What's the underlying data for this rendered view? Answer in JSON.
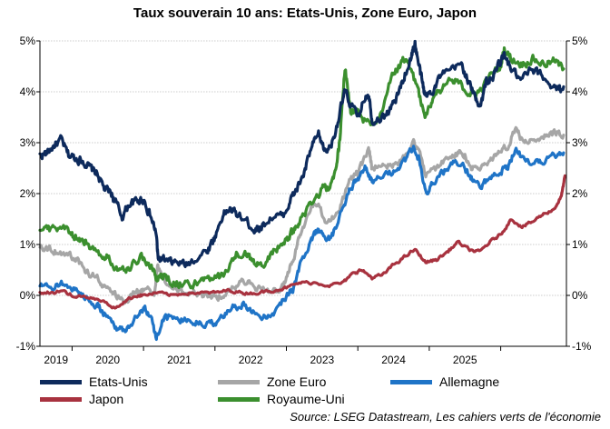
{
  "chart_data": {
    "type": "line",
    "title": "Taux souverain 10 ans: Etats-Unis, Zone Euro, Japon",
    "source": "Source: LSEG Datastream, Les cahiers verts de l'économie",
    "ylim": [
      -1,
      5
    ],
    "y_ticks": [
      -1,
      0,
      1,
      2,
      3,
      4,
      5
    ],
    "y_tick_labels": [
      "-1%",
      "0%",
      "1%",
      "2%",
      "3%",
      "4%",
      "5%"
    ],
    "y_tick_labels_right": [
      "-1%",
      "0%",
      "1%",
      "2%",
      "3%",
      "4%",
      "5%"
    ],
    "xlim": [
      2018.55,
      2025.92
    ],
    "x_ticks": [
      2019,
      2020,
      2021,
      2022,
      2023,
      2024,
      2025
    ],
    "x_tick_labels": [
      "2019",
      "2020",
      "2021",
      "2022",
      "2023",
      "2024",
      "2025"
    ],
    "grid": true,
    "legend_position": "bottom",
    "series": [
      {
        "name": "Etats-Unis",
        "color": "#0d2a5c",
        "x": [
          2018.55,
          2018.65,
          2018.75,
          2018.85,
          2018.95,
          2019.05,
          2019.15,
          2019.25,
          2019.35,
          2019.45,
          2019.55,
          2019.6,
          2019.7,
          2019.8,
          2019.9,
          2020.0,
          2020.1,
          2020.18,
          2020.2,
          2020.25,
          2020.35,
          2020.45,
          2020.6,
          2020.75,
          2020.9,
          2021.0,
          2021.1,
          2021.2,
          2021.3,
          2021.45,
          2021.55,
          2021.65,
          2021.8,
          2021.95,
          2022.05,
          2022.15,
          2022.25,
          2022.35,
          2022.45,
          2022.55,
          2022.65,
          2022.75,
          2022.82,
          2022.9,
          2023.0,
          2023.1,
          2023.15,
          2023.2,
          2023.35,
          2023.45,
          2023.55,
          2023.65,
          2023.75,
          2023.8,
          2023.85,
          2023.9,
          2023.95,
          2024.05,
          2024.15,
          2024.3,
          2024.45,
          2024.55,
          2024.65,
          2024.72,
          2024.8,
          2024.9,
          2024.97,
          2025.05,
          2025.15,
          2025.28,
          2025.4,
          2025.55,
          2025.7,
          2025.8,
          2025.88
        ],
        "y": [
          2.75,
          2.8,
          2.95,
          3.05,
          2.75,
          2.7,
          2.65,
          2.5,
          2.4,
          2.1,
          2.0,
          1.85,
          1.55,
          1.8,
          1.85,
          1.9,
          1.55,
          1.2,
          0.75,
          0.7,
          0.65,
          0.65,
          0.6,
          0.75,
          0.9,
          1.15,
          1.55,
          1.7,
          1.6,
          1.45,
          1.3,
          1.35,
          1.55,
          1.55,
          1.85,
          2.1,
          2.4,
          2.9,
          3.15,
          2.8,
          3.05,
          3.6,
          4.0,
          3.75,
          3.5,
          3.9,
          4.0,
          3.45,
          3.5,
          3.65,
          3.9,
          4.3,
          4.7,
          4.95,
          4.55,
          4.2,
          3.9,
          4.05,
          4.3,
          4.4,
          4.55,
          4.2,
          3.85,
          3.75,
          4.2,
          4.3,
          4.55,
          4.7,
          4.45,
          4.2,
          4.4,
          4.35,
          4.15,
          4.05,
          4.1
        ]
      },
      {
        "name": "Zone Euro",
        "color": "#a6a6a6",
        "x": [
          2018.55,
          2018.7,
          2018.85,
          2019.0,
          2019.1,
          2019.2,
          2019.35,
          2019.45,
          2019.6,
          2019.75,
          2019.9,
          2020.0,
          2020.15,
          2020.2,
          2020.3,
          2020.45,
          2020.6,
          2020.75,
          2020.9,
          2021.0,
          2021.15,
          2021.3,
          2021.45,
          2021.6,
          2021.75,
          2021.9,
          2022.0,
          2022.1,
          2022.2,
          2022.35,
          2022.45,
          2022.55,
          2022.7,
          2022.8,
          2022.9,
          2023.0,
          2023.15,
          2023.2,
          2023.35,
          2023.5,
          2023.65,
          2023.78,
          2023.85,
          2023.95,
          2024.1,
          2024.25,
          2024.4,
          2024.5,
          2024.6,
          2024.72,
          2024.85,
          2024.97,
          2025.1,
          2025.2,
          2025.32,
          2025.45,
          2025.6,
          2025.75,
          2025.88
        ],
        "y": [
          1.0,
          0.9,
          0.85,
          0.75,
          0.65,
          0.45,
          0.35,
          0.2,
          0.0,
          -0.1,
          0.1,
          0.1,
          0.05,
          0.55,
          0.25,
          0.15,
          0.05,
          0.0,
          -0.05,
          -0.05,
          0.05,
          0.2,
          0.3,
          0.15,
          0.1,
          0.05,
          0.3,
          0.75,
          1.2,
          1.75,
          1.7,
          1.45,
          1.6,
          1.9,
          2.3,
          2.4,
          2.85,
          2.5,
          2.6,
          2.55,
          2.7,
          3.05,
          2.8,
          2.4,
          2.5,
          2.7,
          2.8,
          2.75,
          2.5,
          2.5,
          2.65,
          2.8,
          2.95,
          3.3,
          3.0,
          3.05,
          3.15,
          3.2,
          3.15
        ]
      },
      {
        "name": "Allemagne",
        "color": "#1f74c7",
        "x": [
          2018.55,
          2018.7,
          2018.85,
          2019.0,
          2019.1,
          2019.2,
          2019.35,
          2019.45,
          2019.6,
          2019.72,
          2019.85,
          2020.0,
          2020.1,
          2020.18,
          2020.25,
          2020.35,
          2020.5,
          2020.65,
          2020.8,
          2020.95,
          2021.1,
          2021.25,
          2021.4,
          2021.55,
          2021.7,
          2021.85,
          2022.0,
          2022.1,
          2022.2,
          2022.35,
          2022.45,
          2022.55,
          2022.65,
          2022.8,
          2022.9,
          2023.0,
          2023.1,
          2023.2,
          2023.35,
          2023.5,
          2023.65,
          2023.78,
          2023.85,
          2023.95,
          2024.05,
          2024.2,
          2024.35,
          2024.5,
          2024.6,
          2024.72,
          2024.85,
          2025.0,
          2025.1,
          2025.2,
          2025.35,
          2025.5,
          2025.65,
          2025.8,
          2025.88
        ],
        "y": [
          0.2,
          0.1,
          0.25,
          0.15,
          0.05,
          -0.05,
          -0.2,
          -0.35,
          -0.6,
          -0.7,
          -0.5,
          -0.25,
          -0.4,
          -0.85,
          -0.5,
          -0.45,
          -0.45,
          -0.5,
          -0.55,
          -0.55,
          -0.45,
          -0.25,
          -0.15,
          -0.35,
          -0.4,
          -0.3,
          0.0,
          0.15,
          0.6,
          1.1,
          1.35,
          1.05,
          1.2,
          1.75,
          2.1,
          2.3,
          2.5,
          2.25,
          2.3,
          2.45,
          2.6,
          2.9,
          2.7,
          2.0,
          2.25,
          2.45,
          2.6,
          2.5,
          2.3,
          2.2,
          2.3,
          2.45,
          2.5,
          2.9,
          2.6,
          2.6,
          2.7,
          2.8,
          2.8
        ]
      },
      {
        "name": "Japon",
        "color": "#a8323f",
        "x": [
          2018.55,
          2018.7,
          2018.85,
          2019.0,
          2019.2,
          2019.4,
          2019.6,
          2019.75,
          2019.9,
          2020.0,
          2020.2,
          2020.4,
          2020.6,
          2020.8,
          2021.0,
          2021.2,
          2021.4,
          2021.6,
          2021.8,
          2022.0,
          2022.2,
          2022.4,
          2022.6,
          2022.8,
          2022.95,
          2023.05,
          2023.2,
          2023.35,
          2023.5,
          2023.65,
          2023.8,
          2023.95,
          2024.1,
          2024.25,
          2024.4,
          2024.55,
          2024.7,
          2024.85,
          2025.0,
          2025.15,
          2025.3,
          2025.45,
          2025.6,
          2025.75,
          2025.85,
          2025.9
        ],
        "y": [
          0.05,
          0.05,
          0.1,
          0.0,
          -0.05,
          -0.1,
          -0.25,
          -0.1,
          0.0,
          0.0,
          0.05,
          0.0,
          0.05,
          0.05,
          0.05,
          0.1,
          0.05,
          0.05,
          0.1,
          0.15,
          0.25,
          0.25,
          0.2,
          0.25,
          0.45,
          0.5,
          0.35,
          0.4,
          0.6,
          0.75,
          0.9,
          0.65,
          0.7,
          0.85,
          1.05,
          0.9,
          0.85,
          1.05,
          1.2,
          1.5,
          1.35,
          1.45,
          1.6,
          1.7,
          1.95,
          2.35
        ]
      },
      {
        "name": "Royaume-Uni",
        "color": "#3b8f2e",
        "x": [
          2018.55,
          2018.7,
          2018.85,
          2019.0,
          2019.1,
          2019.2,
          2019.35,
          2019.5,
          2019.65,
          2019.8,
          2019.95,
          2020.05,
          2020.15,
          2020.2,
          2020.3,
          2020.45,
          2020.6,
          2020.75,
          2020.9,
          2021.0,
          2021.15,
          2021.3,
          2021.45,
          2021.55,
          2021.7,
          2021.85,
          2022.0,
          2022.1,
          2022.2,
          2022.35,
          2022.5,
          2022.6,
          2022.7,
          2022.75,
          2022.82,
          2022.9,
          2023.0,
          2023.15,
          2023.3,
          2023.45,
          2023.55,
          2023.65,
          2023.72,
          2023.85,
          2023.95,
          2024.05,
          2024.2,
          2024.35,
          2024.5,
          2024.6,
          2024.7,
          2024.85,
          2025.0,
          2025.05,
          2025.15,
          2025.3,
          2025.45,
          2025.6,
          2025.75,
          2025.88
        ],
        "y": [
          1.35,
          1.3,
          1.35,
          1.2,
          1.1,
          1.0,
          0.85,
          0.75,
          0.5,
          0.55,
          0.75,
          0.7,
          0.45,
          0.35,
          0.35,
          0.25,
          0.2,
          0.25,
          0.35,
          0.3,
          0.45,
          0.8,
          0.8,
          0.6,
          0.65,
          0.9,
          1.1,
          1.25,
          1.55,
          1.75,
          2.1,
          2.1,
          2.5,
          3.1,
          4.5,
          3.6,
          3.6,
          3.35,
          3.5,
          4.2,
          4.45,
          4.65,
          4.5,
          3.95,
          3.55,
          3.9,
          4.1,
          4.25,
          4.05,
          3.95,
          4.0,
          4.3,
          4.5,
          4.85,
          4.65,
          4.55,
          4.65,
          4.55,
          4.6,
          4.45
        ]
      }
    ]
  }
}
